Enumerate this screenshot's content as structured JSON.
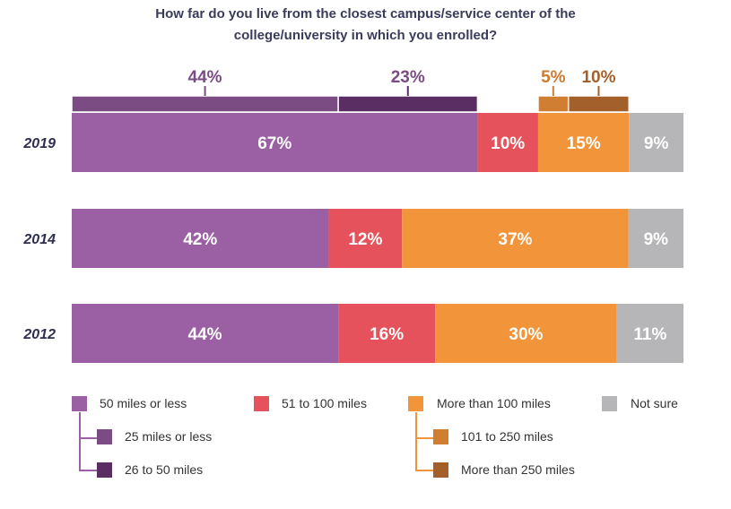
{
  "chart_data": {
    "type": "bar",
    "orientation": "horizontal-stacked",
    "title_line1": "How far do you live from the closest campus/service center of the",
    "title_line2": "college/university in which you enrolled?",
    "categories": [
      "2019",
      "2014",
      "2012"
    ],
    "series": [
      {
        "name": "50 miles or less",
        "color": "#9b5fa4",
        "values": [
          67,
          42,
          44
        ],
        "labels": [
          "67%",
          "42%",
          "44%"
        ]
      },
      {
        "name": "51 to 100 miles",
        "color": "#e5525c",
        "values": [
          10,
          12,
          16
        ],
        "labels": [
          "10%",
          "12%",
          "16%"
        ]
      },
      {
        "name": "More than 100 miles",
        "color": "#f2953a",
        "values": [
          15,
          37,
          30
        ],
        "labels": [
          "15%",
          "37%",
          "30%"
        ]
      },
      {
        "name": "Not sure",
        "color": "#b6b6b8",
        "values": [
          9,
          9,
          11
        ],
        "labels": [
          "9%",
          "9%",
          "11%"
        ]
      }
    ],
    "breakdown_2019": [
      {
        "name": "25 miles or less",
        "color": "#7a4c83",
        "value": 44,
        "label": "44%",
        "label_color": "#7a4c83"
      },
      {
        "name": "26 to 50 miles",
        "color": "#5a2e62",
        "value": 23,
        "label": "23%",
        "label_color": "#7a4c83"
      },
      {
        "name": "101 to 250 miles",
        "color": "#d07f32",
        "value": 5,
        "label": "5%",
        "label_color": "#c97b31"
      },
      {
        "name": "More than 250 miles",
        "color": "#a4602a",
        "value": 10,
        "label": "10%",
        "label_color": "#a4602a"
      }
    ]
  },
  "legend": {
    "main": [
      {
        "label": "50 miles or less",
        "color": "#9b5fa4"
      },
      {
        "label": "51 to 100 miles",
        "color": "#e5525c"
      },
      {
        "label": "More than 100 miles",
        "color": "#f2953a"
      },
      {
        "label": "Not sure",
        "color": "#b6b6b8"
      }
    ],
    "sub_left": [
      {
        "label": "25 miles or less",
        "color": "#7a4c83"
      },
      {
        "label": "26 to 50 miles",
        "color": "#5a2e62"
      }
    ],
    "sub_right": [
      {
        "label": "101 to 250 miles",
        "color": "#d07f32"
      },
      {
        "label": "More than 250 miles",
        "color": "#a4602a"
      }
    ]
  }
}
